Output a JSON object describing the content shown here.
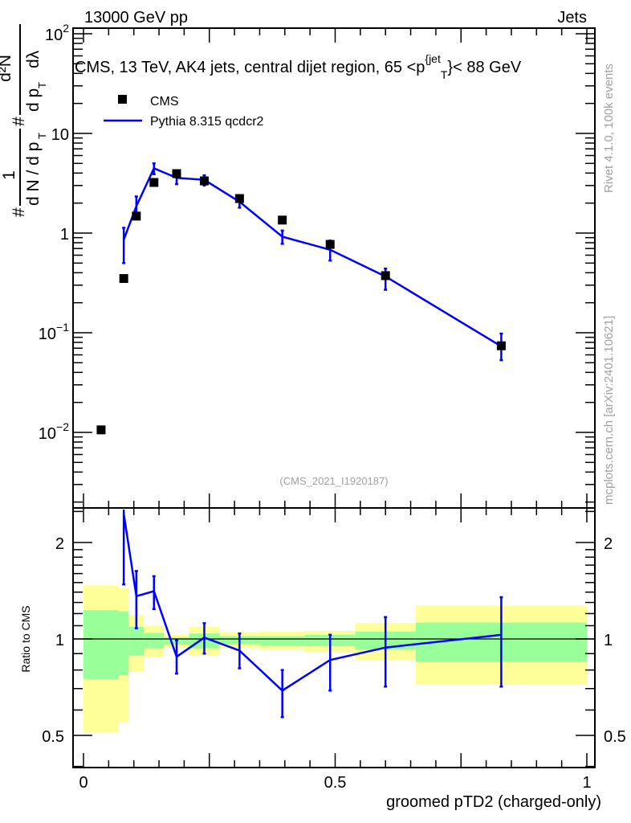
{
  "header": {
    "left": "13000 GeV pp",
    "right": "Jets"
  },
  "side_labels": {
    "rivet": "Rivet 4.1.0,  100k events",
    "mcplots": "mcplots.cern.ch [arXiv:2401.10621]"
  },
  "watermark": "(CMS_2021_I1920187)",
  "colors": {
    "cms": "#000000",
    "pythia": "#0000ff",
    "band_inner": "#99ff99",
    "band_outer": "#ffff99"
  },
  "chart_data": [
    {
      "type": "line",
      "title": "CMS, 13 TeV, AK4 jets, central dijet region, 65 <p",
      "title_sup": "{jet",
      "title_sub": "T",
      "title_tail": "}< 88 GeV",
      "ylabel": {
        "hash": "#",
        "frac1_num": "1",
        "frac1_den": "d N / d p",
        "sub_t": "T",
        "frac2_num": "d²N",
        "frac2_den": "d p",
        "frac2_den_tail": "dλ"
      },
      "yscale": "log",
      "ylim": [
        0.0017,
        114
      ],
      "xlim": [
        0,
        1
      ],
      "ytick_labels": [
        {
          "v": 100,
          "base": "10",
          "exp": "2"
        },
        {
          "v": 10,
          "base": "10",
          "exp": ""
        },
        {
          "v": 1,
          "base": "1",
          "exp": ""
        },
        {
          "v": 0.1,
          "base": "10",
          "exp": "−1"
        },
        {
          "v": 0.01,
          "base": "10",
          "exp": "−2"
        }
      ],
      "legend": {
        "placement": "top-left",
        "entries": [
          "CMS",
          "Pythia 8.315 qcdcr2"
        ]
      },
      "x": [
        0.035,
        0.08,
        0.105,
        0.14,
        0.185,
        0.24,
        0.31,
        0.395,
        0.49,
        0.6,
        0.83
      ],
      "series": [
        {
          "name": "CMS",
          "style": "markers",
          "values": [
            0.0106,
            0.35,
            1.48,
            3.22,
            3.95,
            3.34,
            2.22,
            1.35,
            0.77,
            0.374,
            0.074
          ]
        },
        {
          "name": "Pythia 8.315 qcdcr2",
          "style": "line",
          "values": [
            null,
            0.86,
            1.86,
            4.47,
            3.58,
            3.42,
            2.06,
            0.92,
            0.68,
            0.367,
            0.073
          ],
          "err_low": [
            null,
            0.5,
            1.5,
            3.9,
            3.1,
            3.0,
            1.8,
            0.78,
            0.53,
            0.27,
            0.053
          ],
          "err_high": [
            null,
            1.13,
            2.33,
            5.0,
            4.0,
            3.8,
            2.4,
            1.06,
            0.84,
            0.44,
            0.098
          ]
        }
      ]
    },
    {
      "type": "line",
      "ylabel": "Ratio to CMS",
      "xlabel": "groomed pTD2 (charged-only)",
      "yscale": "log",
      "ylim": [
        0.39,
        2.54
      ],
      "xlim": [
        0,
        1
      ],
      "ytick_labels": [
        {
          "v": 2,
          "label": "2"
        },
        {
          "v": 1,
          "label": "1"
        },
        {
          "v": 0.5,
          "label": "0.5"
        }
      ],
      "xtick_labels": [
        {
          "v": 0,
          "label": "0"
        },
        {
          "v": 0.5,
          "label": "0.5"
        },
        {
          "v": 1,
          "label": "1"
        }
      ],
      "bin_edges": [
        0,
        0.07,
        0.09,
        0.12,
        0.16,
        0.21,
        0.27,
        0.35,
        0.44,
        0.54,
        0.66,
        1.0
      ],
      "band_outer": [
        [
          0.51,
          1.47
        ],
        [
          0.55,
          1.44
        ],
        [
          0.79,
          1.19
        ],
        [
          0.88,
          1.1
        ],
        [
          0.94,
          1.03
        ],
        [
          0.89,
          1.09
        ],
        [
          0.935,
          1.05
        ],
        [
          0.925,
          1.055
        ],
        [
          0.91,
          1.06
        ],
        [
          0.86,
          1.12
        ],
        [
          0.72,
          1.27
        ]
      ],
      "band_inner": [
        [
          0.75,
          1.23
        ],
        [
          0.77,
          1.22
        ],
        [
          0.89,
          1.09
        ],
        [
          0.935,
          1.045
        ],
        [
          0.96,
          1.01
        ],
        [
          0.935,
          1.04
        ],
        [
          0.965,
          1.02
        ],
        [
          0.955,
          1.02
        ],
        [
          0.95,
          1.03
        ],
        [
          0.925,
          1.055
        ],
        [
          0.85,
          1.125
        ]
      ],
      "x": [
        0.08,
        0.105,
        0.14,
        0.185,
        0.24,
        0.31,
        0.395,
        0.49,
        0.6,
        0.83
      ],
      "series": [
        {
          "name": "Pythia 8.315 qcdcr2",
          "values": [
            2.46,
            1.36,
            1.41,
            0.88,
            1.01,
            0.92,
            0.69,
            0.86,
            0.94,
            1.03
          ],
          "err_low": [
            1.48,
            1.08,
            1.24,
            0.78,
            0.9,
            0.81,
            0.57,
            0.69,
            0.71,
            0.71
          ],
          "err_high": [
            3.2,
            1.63,
            1.57,
            0.99,
            1.12,
            1.04,
            0.8,
            1.03,
            1.17,
            1.35
          ]
        }
      ]
    }
  ]
}
